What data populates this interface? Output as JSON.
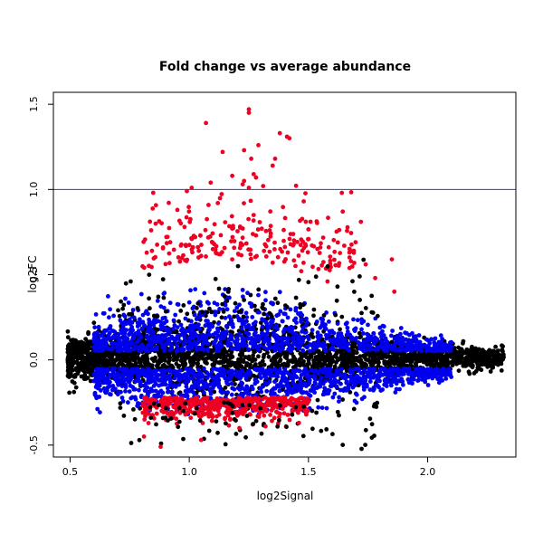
{
  "chart_data": {
    "type": "scatter",
    "title": "Fold change vs average abundance",
    "xlabel": "log2Signal",
    "ylabel": "log2FC",
    "xlim": [
      0.43,
      2.37
    ],
    "ylim": [
      -0.57,
      1.57
    ],
    "x_ticks": [
      0.5,
      1.0,
      1.5,
      2.0
    ],
    "x_tick_labels": [
      "0.5",
      "1.0",
      "1.5",
      "2.0"
    ],
    "y_ticks": [
      -0.5,
      0.0,
      0.5,
      1.0,
      1.5
    ],
    "y_tick_labels": [
      "-0.5",
      "0.0",
      "0.5",
      "1.0",
      "1.5"
    ],
    "grid": false,
    "legend": "none",
    "reference_line": {
      "y": 1.0,
      "color": "#3333cc"
    },
    "series": [
      {
        "color": "#000000"
      },
      {
        "color": "#0000ee"
      },
      {
        "color": "#ee0022"
      }
    ],
    "highlighted_points": {
      "color": "#ee0022",
      "x": [
        1.07,
        1.25,
        1.25,
        1.38,
        1.42,
        1.41,
        1.29,
        1.23,
        1.36,
        1.35,
        1.26,
        1.14,
        1.27,
        1.31,
        1.18,
        1.23,
        1.25,
        1.28,
        0.99,
        1.01,
        1.09,
        1.48,
        1.64,
        1.27,
        1.12,
        0.95,
        0.98,
        1.72,
        1.55,
        1.65,
        1.69,
        1.85,
        1.74,
        1.78,
        1.13,
        1.02,
        0.92,
        0.89,
        0.84,
        1.18,
        1.47,
        1.58,
        1.86,
        1.05,
        1.28,
        1.35,
        1.05,
        0.88,
        0.81,
        1.21,
        1.46,
        1.32
      ],
      "y": [
        1.39,
        1.47,
        1.45,
        1.33,
        1.3,
        1.31,
        1.26,
        1.23,
        1.18,
        1.14,
        1.18,
        1.22,
        1.09,
        1.02,
        1.08,
        1.05,
        1.01,
        1.07,
        0.99,
        1.01,
        1.04,
        0.93,
        0.98,
        0.85,
        0.92,
        0.88,
        0.78,
        0.81,
        0.66,
        0.67,
        0.64,
        0.59,
        0.56,
        0.48,
        0.62,
        0.72,
        0.69,
        0.66,
        0.76,
        0.59,
        0.52,
        0.46,
        0.4,
        0.61,
        0.73,
        0.57,
        -0.47,
        -0.51,
        -0.45,
        -0.4,
        -0.37,
        -0.39
      ]
    }
  }
}
